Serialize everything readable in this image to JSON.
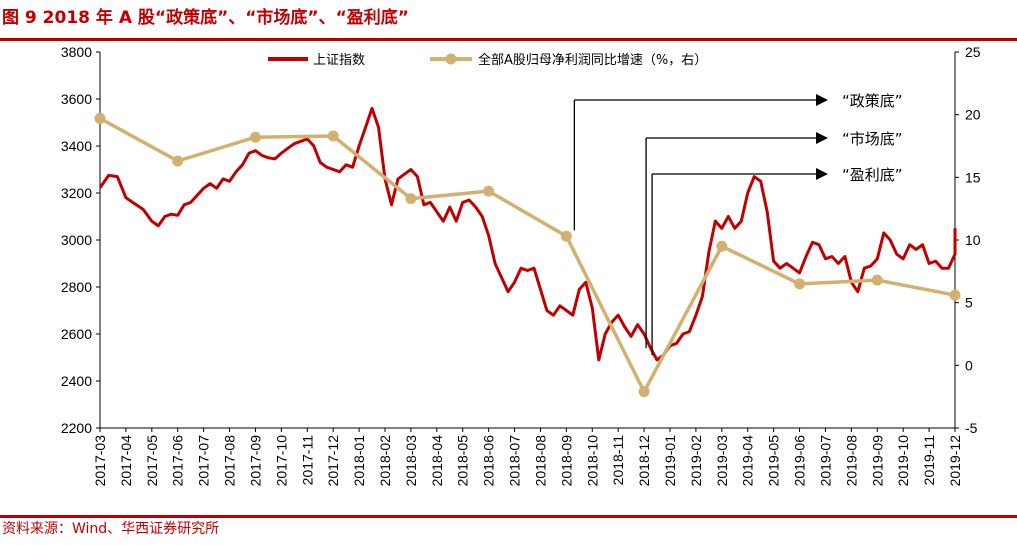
{
  "figure": {
    "title": "图 9  2018 年 A 股“政策底”、“市场底”、“盈利底”",
    "source": "资料来源：Wind、华西证券研究所"
  },
  "colors": {
    "index_line": "#c00000",
    "profit_line": "#d2b06f",
    "accent": "#c00000"
  },
  "chart_data": {
    "type": "line",
    "title": "",
    "x_labels": [
      "2017-03",
      "2017-04",
      "2017-05",
      "2017-06",
      "2017-07",
      "2017-08",
      "2017-09",
      "2017-10",
      "2017-11",
      "2017-12",
      "2018-01",
      "2018-02",
      "2018-03",
      "2018-04",
      "2018-05",
      "2018-06",
      "2018-07",
      "2018-08",
      "2018-09",
      "2018-10",
      "2018-11",
      "2018-12",
      "2019-01",
      "2019-02",
      "2019-03",
      "2019-04",
      "2019-05",
      "2019-06",
      "2019-07",
      "2019-08",
      "2019-09",
      "2019-10",
      "2019-11",
      "2019-12"
    ],
    "y_left": {
      "range": [
        2200,
        3800
      ],
      "ticks": [
        2200,
        2400,
        2600,
        2800,
        3000,
        3200,
        3400,
        3600,
        3800
      ]
    },
    "y_right": {
      "range": [
        -5,
        25
      ],
      "ticks": [
        -5,
        0,
        5,
        10,
        15,
        20,
        25
      ]
    },
    "series": [
      {
        "name": "上证指数",
        "axis": "left",
        "points": [
          [
            "2017-03",
            3222
          ],
          [
            "2017-03",
            3275
          ],
          [
            "2017-03",
            3270
          ],
          [
            "2017-04",
            3180
          ],
          [
            "2017-04",
            3155
          ],
          [
            "2017-04",
            3130
          ],
          [
            "2017-05",
            3080
          ],
          [
            "2017-05",
            3060
          ],
          [
            "2017-05",
            3100
          ],
          [
            "2017-05",
            3110
          ],
          [
            "2017-06",
            3105
          ],
          [
            "2017-06",
            3150
          ],
          [
            "2017-06",
            3160
          ],
          [
            "2017-06",
            3190
          ],
          [
            "2017-07",
            3220
          ],
          [
            "2017-07",
            3240
          ],
          [
            "2017-07",
            3220
          ],
          [
            "2017-07",
            3260
          ],
          [
            "2017-08",
            3250
          ],
          [
            "2017-08",
            3290
          ],
          [
            "2017-08",
            3320
          ],
          [
            "2017-08",
            3370
          ],
          [
            "2017-09",
            3380
          ],
          [
            "2017-09",
            3360
          ],
          [
            "2017-09",
            3350
          ],
          [
            "2017-09",
            3345
          ],
          [
            "2017-10",
            3370
          ],
          [
            "2017-10",
            3390
          ],
          [
            "2017-10",
            3410
          ],
          [
            "2017-10",
            3420
          ],
          [
            "2017-11",
            3430
          ],
          [
            "2017-11",
            3400
          ],
          [
            "2017-11",
            3330
          ],
          [
            "2017-11",
            3310
          ],
          [
            "2017-12",
            3300
          ],
          [
            "2017-12",
            3290
          ],
          [
            "2017-12",
            3320
          ],
          [
            "2017-12",
            3310
          ],
          [
            "2018-01",
            3400
          ],
          [
            "2018-01",
            3480
          ],
          [
            "2018-01",
            3560
          ],
          [
            "2018-01",
            3480
          ],
          [
            "2018-02",
            3260
          ],
          [
            "2018-02",
            3150
          ],
          [
            "2018-02",
            3260
          ],
          [
            "2018-02",
            3280
          ],
          [
            "2018-03",
            3300
          ],
          [
            "2018-03",
            3270
          ],
          [
            "2018-03",
            3150
          ],
          [
            "2018-03",
            3160
          ],
          [
            "2018-04",
            3120
          ],
          [
            "2018-04",
            3080
          ],
          [
            "2018-04",
            3140
          ],
          [
            "2018-04",
            3080
          ],
          [
            "2018-05",
            3160
          ],
          [
            "2018-05",
            3170
          ],
          [
            "2018-05",
            3140
          ],
          [
            "2018-05",
            3100
          ],
          [
            "2018-06",
            3020
          ],
          [
            "2018-06",
            2900
          ],
          [
            "2018-06",
            2840
          ],
          [
            "2018-06",
            2780
          ],
          [
            "2018-07",
            2820
          ],
          [
            "2018-07",
            2880
          ],
          [
            "2018-07",
            2870
          ],
          [
            "2018-07",
            2880
          ],
          [
            "2018-08",
            2790
          ],
          [
            "2018-08",
            2700
          ],
          [
            "2018-08",
            2680
          ],
          [
            "2018-08",
            2720
          ],
          [
            "2018-09",
            2700
          ],
          [
            "2018-09",
            2680
          ],
          [
            "2018-09",
            2790
          ],
          [
            "2018-09",
            2820
          ],
          [
            "2018-10",
            2710
          ],
          [
            "2018-10",
            2490
          ],
          [
            "2018-10",
            2600
          ],
          [
            "2018-10",
            2650
          ],
          [
            "2018-11",
            2680
          ],
          [
            "2018-11",
            2630
          ],
          [
            "2018-11",
            2590
          ],
          [
            "2018-11",
            2640
          ],
          [
            "2018-12",
            2600
          ],
          [
            "2018-12",
            2540
          ],
          [
            "2018-12",
            2490
          ],
          [
            "2018-12",
            2510
          ],
          [
            "2019-01",
            2550
          ],
          [
            "2019-01",
            2560
          ],
          [
            "2019-01",
            2600
          ],
          [
            "2019-01",
            2610
          ],
          [
            "2019-02",
            2680
          ],
          [
            "2019-02",
            2760
          ],
          [
            "2019-02",
            2950
          ],
          [
            "2019-02",
            3080
          ],
          [
            "2019-03",
            3050
          ],
          [
            "2019-03",
            3100
          ],
          [
            "2019-03",
            3050
          ],
          [
            "2019-03",
            3080
          ],
          [
            "2019-04",
            3200
          ],
          [
            "2019-04",
            3270
          ],
          [
            "2019-04",
            3250
          ],
          [
            "2019-04",
            3120
          ],
          [
            "2019-05",
            2910
          ],
          [
            "2019-05",
            2880
          ],
          [
            "2019-05",
            2900
          ],
          [
            "2019-05",
            2880
          ],
          [
            "2019-06",
            2860
          ],
          [
            "2019-06",
            2930
          ],
          [
            "2019-06",
            2990
          ],
          [
            "2019-06",
            2980
          ],
          [
            "2019-07",
            2920
          ],
          [
            "2019-07",
            2930
          ],
          [
            "2019-07",
            2900
          ],
          [
            "2019-07",
            2930
          ],
          [
            "2019-08",
            2820
          ],
          [
            "2019-08",
            2780
          ],
          [
            "2019-08",
            2880
          ],
          [
            "2019-08",
            2890
          ],
          [
            "2019-09",
            2920
          ],
          [
            "2019-09",
            3030
          ],
          [
            "2019-09",
            3000
          ],
          [
            "2019-09",
            2940
          ],
          [
            "2019-10",
            2920
          ],
          [
            "2019-10",
            2980
          ],
          [
            "2019-10",
            2960
          ],
          [
            "2019-10",
            2980
          ],
          [
            "2019-11",
            2900
          ],
          [
            "2019-11",
            2910
          ],
          [
            "2019-11",
            2880
          ],
          [
            "2019-11",
            2880
          ],
          [
            "2019-12",
            2940
          ],
          [
            "2019-12",
            2990
          ],
          [
            "2019-12",
            3050
          ]
        ]
      },
      {
        "name": "全部A股归母净利润同比增速（%，右）",
        "axis": "right",
        "points": [
          [
            "2017-03",
            19.7
          ],
          [
            "2017-06",
            16.3
          ],
          [
            "2017-09",
            18.2
          ],
          [
            "2017-12",
            18.3
          ],
          [
            "2018-03",
            13.3
          ],
          [
            "2018-06",
            13.9
          ],
          [
            "2018-09",
            10.3
          ],
          [
            "2018-12",
            -2.1
          ],
          [
            "2019-03",
            9.5
          ],
          [
            "2019-06",
            6.5
          ],
          [
            "2019-09",
            6.8
          ],
          [
            "2019-12",
            5.6
          ]
        ]
      }
    ],
    "annotations": [
      {
        "label": "“政策底”",
        "anchor": "2018-09"
      },
      {
        "label": "“市场底”",
        "anchor": "2018-12"
      },
      {
        "label": "“盈利底”",
        "anchor": "2018-12"
      }
    ],
    "legend_position": "top",
    "grid": false
  }
}
